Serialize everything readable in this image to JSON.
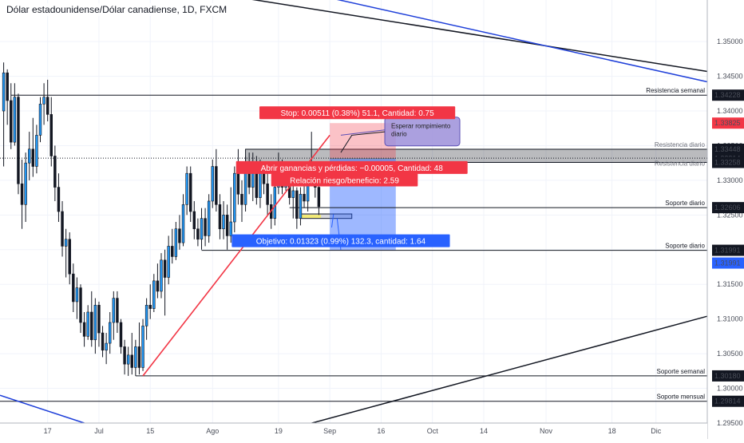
{
  "chart_data": {
    "type": "candlestick",
    "title": "Dólar estadounidense/Dólar canadiense, 1D, FXCM",
    "y_axis_ticks": [
      "1.35000",
      "1.34500",
      "1.34000",
      "1.33500",
      "1.33000",
      "1.32500",
      "1.32000",
      "1.31500",
      "1.31000",
      "1.30500",
      "1.30000",
      "1.29500"
    ],
    "y_tick_values": [
      1.35,
      1.345,
      1.34,
      1.335,
      1.33,
      1.325,
      1.32,
      1.315,
      1.31,
      1.305,
      1.3,
      1.295
    ],
    "ylim": [
      1.295,
      1.356
    ],
    "x_axis_ticks": [
      {
        "label": "17",
        "day": 0
      },
      {
        "label": "Jul",
        "day": 14
      },
      {
        "label": "15",
        "day": 28
      },
      {
        "label": "Ago",
        "day": 45
      },
      {
        "label": "19",
        "day": 63
      },
      {
        "label": "Sep",
        "day": 77
      },
      {
        "label": "16",
        "day": 91
      },
      {
        "label": "Oct",
        "day": 105
      },
      {
        "label": "14",
        "day": 119
      },
      {
        "label": "Nov",
        "day": 136
      },
      {
        "label": "18",
        "day": 154
      },
      {
        "label": "Dic",
        "day": 166
      }
    ],
    "xlim_days": [
      -13,
      180
    ],
    "price_levels": [
      {
        "price": 1.34228,
        "label": "1.34228",
        "name": "Resistencia semanal",
        "color": "#131722",
        "day_start": -10
      },
      {
        "price": 1.33825,
        "label": "1.33825",
        "name": "",
        "color": "#f23645",
        "day_start": null
      },
      {
        "price": 1.33448,
        "label": "1.33448",
        "name": "Resistencia diario",
        "color": "#131722",
        "day_start": null
      },
      {
        "price": 1.33319,
        "label": "1.33319",
        "name": "",
        "color": "#131722",
        "day_start": -13
      },
      {
        "price": 1.33314,
        "label": "1.33314",
        "name": "Resistencia diario",
        "color": "#131722",
        "day_start": null
      },
      {
        "price": 1.33258,
        "label": "1.33258",
        "name": "",
        "color": "#131722",
        "day_start": null
      },
      {
        "price": 1.32606,
        "label": "1.32606",
        "name": "Soporte diario",
        "color": "#131722",
        "day_start": 66
      },
      {
        "price": 1.31991,
        "label": "1.31991",
        "name": "Soporte diario",
        "color": "#131722",
        "day_start": 42
      },
      {
        "price": 1.31991,
        "label": "1.31991",
        "name": "",
        "color": "#2962ff",
        "day_start": null
      },
      {
        "price": 1.3018,
        "label": "1.30180",
        "name": "Soporte semanal",
        "color": "#131722",
        "day_start": 24
      },
      {
        "price": 1.29814,
        "label": "1.29814",
        "name": "Soporte mensual",
        "color": "#131722",
        "day_start": -13
      }
    ],
    "candles": [
      {
        "day": -12,
        "o": 1.34,
        "h": 1.347,
        "l": 1.332,
        "c": 1.3455
      },
      {
        "day": -11,
        "o": 1.3455,
        "h": 1.346,
        "l": 1.338,
        "c": 1.3415
      },
      {
        "day": -10,
        "o": 1.3415,
        "h": 1.344,
        "l": 1.3345,
        "c": 1.3355
      },
      {
        "day": -9,
        "o": 1.3355,
        "h": 1.344,
        "l": 1.335,
        "c": 1.342
      },
      {
        "day": -8,
        "o": 1.342,
        "h": 1.3425,
        "l": 1.328,
        "c": 1.3295
      },
      {
        "day": -7,
        "o": 1.3295,
        "h": 1.333,
        "l": 1.323,
        "c": 1.3265
      },
      {
        "day": -6,
        "o": 1.3265,
        "h": 1.334,
        "l": 1.324,
        "c": 1.3325
      },
      {
        "day": -5,
        "o": 1.3325,
        "h": 1.337,
        "l": 1.33,
        "c": 1.3345
      },
      {
        "day": -4,
        "o": 1.3345,
        "h": 1.339,
        "l": 1.3305,
        "c": 1.332
      },
      {
        "day": -3,
        "o": 1.332,
        "h": 1.338,
        "l": 1.331,
        "c": 1.3365
      },
      {
        "day": -2,
        "o": 1.3365,
        "h": 1.342,
        "l": 1.3355,
        "c": 1.341
      },
      {
        "day": -1,
        "o": 1.341,
        "h": 1.344,
        "l": 1.338,
        "c": 1.342
      },
      {
        "day": 0,
        "o": 1.342,
        "h": 1.3445,
        "l": 1.3385,
        "c": 1.3395
      },
      {
        "day": 1,
        "o": 1.3395,
        "h": 1.342,
        "l": 1.332,
        "c": 1.3335
      },
      {
        "day": 2,
        "o": 1.3335,
        "h": 1.335,
        "l": 1.327,
        "c": 1.329
      },
      {
        "day": 3,
        "o": 1.329,
        "h": 1.331,
        "l": 1.324,
        "c": 1.3255
      },
      {
        "day": 4,
        "o": 1.3255,
        "h": 1.327,
        "l": 1.319,
        "c": 1.3205
      },
      {
        "day": 5,
        "o": 1.3205,
        "h": 1.323,
        "l": 1.316,
        "c": 1.3215
      },
      {
        "day": 6,
        "o": 1.3215,
        "h": 1.3225,
        "l": 1.315,
        "c": 1.3165
      },
      {
        "day": 7,
        "o": 1.3165,
        "h": 1.318,
        "l": 1.311,
        "c": 1.3125
      },
      {
        "day": 8,
        "o": 1.3125,
        "h": 1.316,
        "l": 1.31,
        "c": 1.3145
      },
      {
        "day": 9,
        "o": 1.3145,
        "h": 1.315,
        "l": 1.308,
        "c": 1.3095
      },
      {
        "day": 10,
        "o": 1.3095,
        "h": 1.311,
        "l": 1.306,
        "c": 1.3075
      },
      {
        "day": 11,
        "o": 1.3075,
        "h": 1.312,
        "l": 1.307,
        "c": 1.311
      },
      {
        "day": 12,
        "o": 1.311,
        "h": 1.314,
        "l": 1.306,
        "c": 1.307
      },
      {
        "day": 13,
        "o": 1.307,
        "h": 1.313,
        "l": 1.305,
        "c": 1.312
      },
      {
        "day": 14,
        "o": 1.312,
        "h": 1.3125,
        "l": 1.306,
        "c": 1.308
      },
      {
        "day": 15,
        "o": 1.308,
        "h": 1.309,
        "l": 1.3045,
        "c": 1.3055
      },
      {
        "day": 16,
        "o": 1.3055,
        "h": 1.308,
        "l": 1.3035,
        "c": 1.3065
      },
      {
        "day": 17,
        "o": 1.3065,
        "h": 1.311,
        "l": 1.305,
        "c": 1.3095
      },
      {
        "day": 18,
        "o": 1.3095,
        "h": 1.314,
        "l": 1.307,
        "c": 1.313
      },
      {
        "day": 19,
        "o": 1.313,
        "h": 1.314,
        "l": 1.308,
        "c": 1.3095
      },
      {
        "day": 20,
        "o": 1.3095,
        "h": 1.31,
        "l": 1.305,
        "c": 1.306
      },
      {
        "day": 21,
        "o": 1.306,
        "h": 1.307,
        "l": 1.302,
        "c": 1.3035
      },
      {
        "day": 22,
        "o": 1.3035,
        "h": 1.306,
        "l": 1.3018,
        "c": 1.3048
      },
      {
        "day": 23,
        "o": 1.3048,
        "h": 1.308,
        "l": 1.302,
        "c": 1.303
      },
      {
        "day": 24,
        "o": 1.303,
        "h": 1.307,
        "l": 1.3018,
        "c": 1.306
      },
      {
        "day": 25,
        "o": 1.306,
        "h": 1.3095,
        "l": 1.302,
        "c": 1.303
      },
      {
        "day": 26,
        "o": 1.303,
        "h": 1.31,
        "l": 1.3025,
        "c": 1.309
      },
      {
        "day": 27,
        "o": 1.309,
        "h": 1.313,
        "l": 1.307,
        "c": 1.312
      },
      {
        "day": 28,
        "o": 1.312,
        "h": 1.315,
        "l": 1.31,
        "c": 1.3115
      },
      {
        "day": 29,
        "o": 1.3115,
        "h": 1.3165,
        "l": 1.311,
        "c": 1.3155
      },
      {
        "day": 30,
        "o": 1.3155,
        "h": 1.318,
        "l": 1.313,
        "c": 1.314
      },
      {
        "day": 31,
        "o": 1.314,
        "h": 1.3195,
        "l": 1.313,
        "c": 1.3185
      },
      {
        "day": 32,
        "o": 1.3185,
        "h": 1.32,
        "l": 1.3105,
        "c": 1.316
      },
      {
        "day": 33,
        "o": 1.316,
        "h": 1.322,
        "l": 1.315,
        "c": 1.3205
      },
      {
        "day": 34,
        "o": 1.3205,
        "h": 1.323,
        "l": 1.318,
        "c": 1.319
      },
      {
        "day": 35,
        "o": 1.319,
        "h": 1.324,
        "l": 1.3185,
        "c": 1.323
      },
      {
        "day": 36,
        "o": 1.323,
        "h": 1.325,
        "l": 1.32,
        "c": 1.321
      },
      {
        "day": 37,
        "o": 1.321,
        "h": 1.328,
        "l": 1.3205,
        "c": 1.3265
      },
      {
        "day": 38,
        "o": 1.3265,
        "h": 1.332,
        "l": 1.325,
        "c": 1.331
      },
      {
        "day": 39,
        "o": 1.331,
        "h": 1.332,
        "l": 1.324,
        "c": 1.3255
      },
      {
        "day": 40,
        "o": 1.3255,
        "h": 1.327,
        "l": 1.3215,
        "c": 1.323
      },
      {
        "day": 41,
        "o": 1.323,
        "h": 1.3245,
        "l": 1.3205,
        "c": 1.3215
      },
      {
        "day": 42,
        "o": 1.3215,
        "h": 1.326,
        "l": 1.32,
        "c": 1.3245
      },
      {
        "day": 43,
        "o": 1.3245,
        "h": 1.326,
        "l": 1.3205,
        "c": 1.322
      },
      {
        "day": 44,
        "o": 1.322,
        "h": 1.328,
        "l": 1.321,
        "c": 1.327
      },
      {
        "day": 45,
        "o": 1.327,
        "h": 1.333,
        "l": 1.326,
        "c": 1.332
      },
      {
        "day": 46,
        "o": 1.332,
        "h": 1.3345,
        "l": 1.3255,
        "c": 1.3265
      },
      {
        "day": 47,
        "o": 1.3265,
        "h": 1.328,
        "l": 1.3215,
        "c": 1.323
      },
      {
        "day": 48,
        "o": 1.323,
        "h": 1.327,
        "l": 1.3215,
        "c": 1.325
      },
      {
        "day": 49,
        "o": 1.325,
        "h": 1.3265,
        "l": 1.32,
        "c": 1.322
      },
      {
        "day": 50,
        "o": 1.322,
        "h": 1.329,
        "l": 1.321,
        "c": 1.324
      },
      {
        "day": 51,
        "o": 1.324,
        "h": 1.332,
        "l": 1.3225,
        "c": 1.331
      },
      {
        "day": 52,
        "o": 1.331,
        "h": 1.3345,
        "l": 1.3265,
        "c": 1.328
      },
      {
        "day": 53,
        "o": 1.328,
        "h": 1.33,
        "l": 1.324,
        "c": 1.3265
      },
      {
        "day": 54,
        "o": 1.3265,
        "h": 1.3335,
        "l": 1.3255,
        "c": 1.3325
      },
      {
        "day": 55,
        "o": 1.3325,
        "h": 1.334,
        "l": 1.328,
        "c": 1.329
      },
      {
        "day": 56,
        "o": 1.329,
        "h": 1.334,
        "l": 1.327,
        "c": 1.3325
      },
      {
        "day": 57,
        "o": 1.3325,
        "h": 1.3335,
        "l": 1.3265,
        "c": 1.3275
      },
      {
        "day": 58,
        "o": 1.3275,
        "h": 1.333,
        "l": 1.326,
        "c": 1.332
      },
      {
        "day": 59,
        "o": 1.332,
        "h": 1.3325,
        "l": 1.328,
        "c": 1.3295
      },
      {
        "day": 60,
        "o": 1.3295,
        "h": 1.331,
        "l": 1.325,
        "c": 1.3265
      },
      {
        "day": 61,
        "o": 1.3265,
        "h": 1.328,
        "l": 1.323,
        "c": 1.3245
      },
      {
        "day": 62,
        "o": 1.3245,
        "h": 1.33,
        "l": 1.3235,
        "c": 1.329
      },
      {
        "day": 63,
        "o": 1.329,
        "h": 1.334,
        "l": 1.328,
        "c": 1.3315
      },
      {
        "day": 64,
        "o": 1.3315,
        "h": 1.333,
        "l": 1.328,
        "c": 1.329
      },
      {
        "day": 65,
        "o": 1.329,
        "h": 1.332,
        "l": 1.3285,
        "c": 1.3305
      },
      {
        "day": 66,
        "o": 1.3305,
        "h": 1.331,
        "l": 1.3265,
        "c": 1.3275
      },
      {
        "day": 67,
        "o": 1.3275,
        "h": 1.3295,
        "l": 1.3245,
        "c": 1.3285
      },
      {
        "day": 68,
        "o": 1.3285,
        "h": 1.329,
        "l": 1.323,
        "c": 1.3245
      },
      {
        "day": 69,
        "o": 1.3245,
        "h": 1.329,
        "l": 1.3235,
        "c": 1.328
      },
      {
        "day": 70,
        "o": 1.328,
        "h": 1.331,
        "l": 1.326,
        "c": 1.327
      },
      {
        "day": 71,
        "o": 1.327,
        "h": 1.3325,
        "l": 1.3255,
        "c": 1.331
      },
      {
        "day": 72,
        "o": 1.331,
        "h": 1.337,
        "l": 1.33,
        "c": 1.3315
      },
      {
        "day": 73,
        "o": 1.3315,
        "h": 1.332,
        "l": 1.3275,
        "c": 1.329
      },
      {
        "day": 74,
        "o": 1.329,
        "h": 1.33,
        "l": 1.325,
        "c": 1.3262
      }
    ],
    "trendlines": [
      {
        "name": "uptrend-line",
        "color": "#f23645",
        "p1": {
          "day": 26,
          "price": 1.3018
        },
        "p2": {
          "day": 77,
          "price": 1.3365
        }
      },
      {
        "name": "resistance-trendline-upper",
        "color": "#131722",
        "p1": {
          "day": 46,
          "price": 1.3569
        },
        "p2": {
          "day": 180,
          "price": 1.3457
        }
      },
      {
        "name": "blue-trendline-upper",
        "color": "#1e3fd9",
        "p1": {
          "day": 72,
          "price": 1.3569
        },
        "p2": {
          "day": 180,
          "price": 1.3442
        }
      },
      {
        "name": "support-trendline-lower",
        "color": "#131722",
        "p1": {
          "day": 70,
          "price": 1.2947
        },
        "p2": {
          "day": 180,
          "price": 1.3104
        }
      },
      {
        "name": "blue-trendline-lower",
        "color": "#1e3fd9",
        "p1": {
          "day": -13,
          "price": 1.299
        },
        "p2": {
          "day": 10,
          "price": 1.295
        }
      }
    ],
    "zones": [
      {
        "name": "resistance-zone",
        "day_start": 54,
        "day_end": 180,
        "price_top": 1.33448,
        "price_bottom": 1.33258,
        "color": "#3a3d44",
        "label": "Resistencia diario"
      },
      {
        "name": "pullback-box",
        "day_start": 69,
        "day_end": 83,
        "price_top": 1.32515,
        "price_bottom": 1.3245,
        "color": "#f2ea76",
        "label": ""
      }
    ],
    "position": {
      "day_start": 77,
      "day_end": 95,
      "entry": 1.33314,
      "stop": 1.33825,
      "target": 1.31991,
      "stop_label": "Stop: 0.00511 (0.38%) 51.1, Cantidad: 0.75",
      "open_label": "Abrir ganancias y pérdidas: −0.00005, Cantidad: 48",
      "rr_label": "Relación riesgo/beneficio: 2.59",
      "target_label": "Objetivo: 0.01323 (0.99%) 132.3, cantidad: 1.64"
    },
    "annotations": [
      {
        "name": "callout",
        "text_line1": "Esperar rompimiento",
        "text_line2": "diario",
        "day": 92,
        "price": 1.3375
      }
    ]
  }
}
